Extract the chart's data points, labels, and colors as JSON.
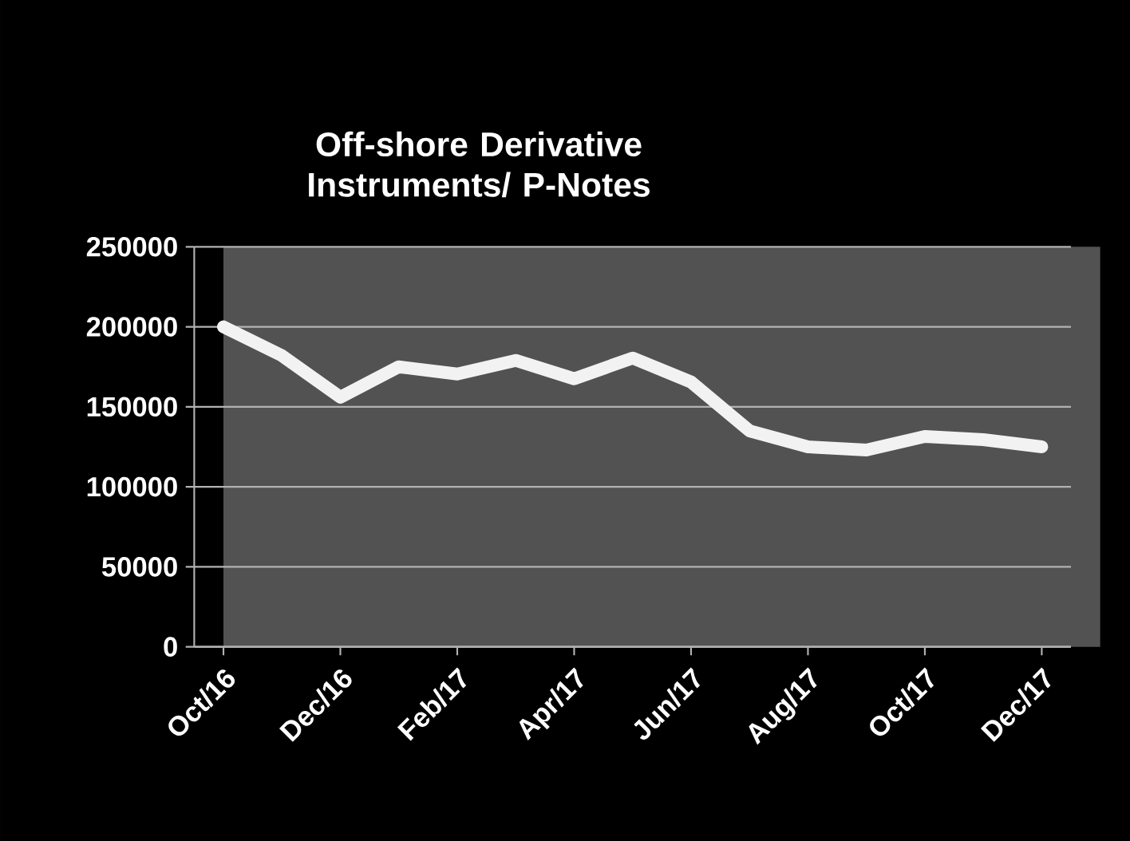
{
  "chart_data": {
    "type": "line",
    "title": "Off-shore Derivative Instruments/ P-Notes",
    "categories": [
      "Oct/16",
      null,
      "Dec/16",
      null,
      "Feb/17",
      null,
      "Apr/17",
      null,
      "Jun/17",
      null,
      "Aug/17",
      null,
      "Oct/17",
      null,
      "Dec/17"
    ],
    "values": [
      200000,
      182000,
      156000,
      175000,
      170500,
      179000,
      167500,
      180500,
      165500,
      135000,
      125000,
      123000,
      131500,
      129500,
      125000
    ],
    "color": "#f2f2f2",
    "ylim": [
      0,
      250000
    ],
    "yticks": [
      0,
      50000,
      100000,
      150000,
      200000,
      250000
    ],
    "grid": "y"
  }
}
